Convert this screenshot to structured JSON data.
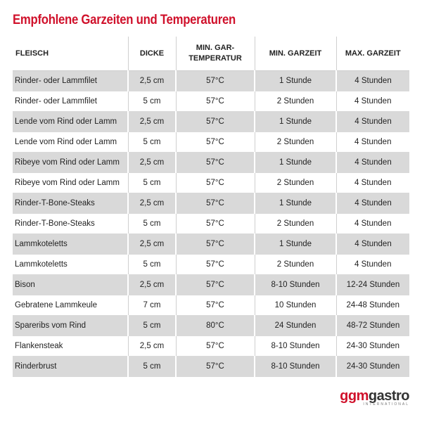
{
  "header": {
    "title": "Empfohlene Garzeiten und Temperaturen"
  },
  "table": {
    "columns": [
      "FLEISCH",
      "DICKE",
      [
        "MIN. GAR-",
        "TEMPERATUR"
      ],
      "MIN. GARZEIT",
      "MAX. GARZEIT"
    ],
    "rows": [
      [
        "Rinder- oder Lammfilet",
        "2,5 cm",
        "57°C",
        "1 Stunde",
        "4 Stunden"
      ],
      [
        "Rinder- oder Lammfilet",
        "5 cm",
        "57°C",
        "2 Stunden",
        "4 Stunden"
      ],
      [
        "Lende vom Rind oder Lamm",
        "2,5 cm",
        "57°C",
        "1 Stunde",
        "4 Stunden"
      ],
      [
        "Lende vom Rind oder Lamm",
        "5 cm",
        "57°C",
        "2 Stunden",
        "4 Stunden"
      ],
      [
        "Ribeye vom Rind oder Lamm",
        "2,5 cm",
        "57°C",
        "1 Stunde",
        "4 Stunden"
      ],
      [
        "Ribeye vom Rind oder Lamm",
        "5 cm",
        "57°C",
        "2 Stunden",
        "4 Stunden"
      ],
      [
        "Rinder-T-Bone-Steaks",
        "2,5 cm",
        "57°C",
        "1 Stunde",
        "4 Stunden"
      ],
      [
        "Rinder-T-Bone-Steaks",
        "5 cm",
        "57°C",
        "2 Stunden",
        "4 Stunden"
      ],
      [
        "Lammkoteletts",
        "2,5 cm",
        "57°C",
        "1 Stunde",
        "4 Stunden"
      ],
      [
        "Lammkoteletts",
        "5 cm",
        "57°C",
        "2 Stunden",
        "4 Stunden"
      ],
      [
        "Bison",
        "2,5 cm",
        "57°C",
        "8-10 Stunden",
        "12-24 Stunden"
      ],
      [
        "Gebratene Lammkeule",
        "7 cm",
        "57°C",
        "10 Stunden",
        "24-48 Stunden"
      ],
      [
        "Spareribs vom Rind",
        "5 cm",
        "80°C",
        "24 Stunden",
        "48-72 Stunden"
      ],
      [
        "Flankensteak",
        "2,5 cm",
        "57°C",
        "8-10 Stunden",
        "24-30 Stunden"
      ],
      [
        "Rinderbrust",
        "5 cm",
        "57°C",
        "8-10 Stunden",
        "24-30 Stunden"
      ]
    ]
  },
  "logo": {
    "part1": "ggm",
    "part2": "gastro",
    "tagline": "INTERNATIONAL"
  }
}
